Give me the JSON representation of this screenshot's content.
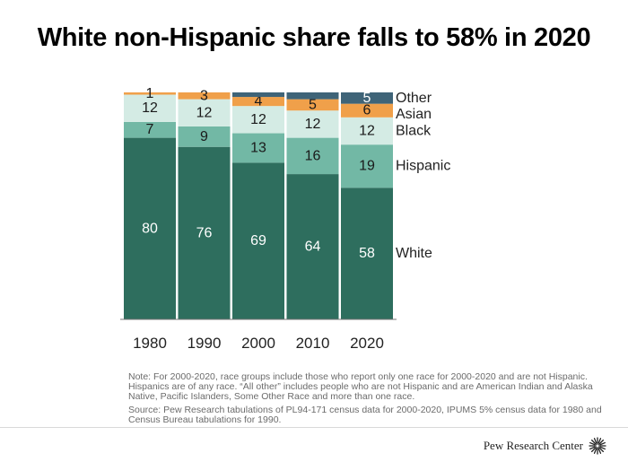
{
  "chart_data": {
    "type": "bar",
    "stacked": true,
    "title": "White non-Hispanic share falls to 58% in 2020",
    "categories": [
      "1980",
      "1990",
      "2000",
      "2010",
      "2020"
    ],
    "ylim": [
      0,
      100
    ],
    "grid": false,
    "legend": "right",
    "series": [
      {
        "name": "White",
        "values": [
          80,
          76,
          69,
          64,
          58
        ],
        "color": "#2e6e5e",
        "label_color": "#ffffff"
      },
      {
        "name": "Hispanic",
        "values": [
          7,
          9,
          13,
          16,
          19
        ],
        "color": "#72b8a5",
        "label_color": "#1a1a1a"
      },
      {
        "name": "Black",
        "values": [
          12,
          12,
          12,
          12,
          12
        ],
        "color": "#d4ebe4",
        "label_color": "#1a1a1a"
      },
      {
        "name": "Asian",
        "values": [
          1,
          3,
          4,
          5,
          6
        ],
        "color": "#f0a04a",
        "label_color": "#1a1a1a"
      },
      {
        "name": "Other",
        "values": [
          0,
          0,
          2,
          3,
          5
        ],
        "color": "#3f6478",
        "label_color": "#ffffff"
      }
    ],
    "data_labels": {
      "White": [
        "80",
        "76",
        "69",
        "64",
        "58"
      ],
      "Hispanic": [
        "7",
        "9",
        "13",
        "16",
        "19"
      ],
      "Black": [
        "12",
        "12",
        "12",
        "12",
        "12"
      ],
      "Asian": [
        "1",
        "3",
        "4",
        "5",
        "6"
      ],
      "Other": [
        "",
        "",
        "",
        "",
        "5"
      ]
    }
  },
  "note": "Note: For 2000-2020, race groups include those who report only one race for 2000-2020 and are not Hispanic. Hispanics are of any race. “All other” includes people who are not Hispanic and are American Indian and Alaska Native, Pacific Islanders, Some Other Race and more than one race.",
  "source": "Source: Pew Research tabulations of PL94-171 census data for 2000-2020, IPUMS 5% census data for 1980 and Census Bureau tabulations for 1990.",
  "brand": {
    "name": "Pew Research Center",
    "icon": "pew-logo-icon"
  }
}
